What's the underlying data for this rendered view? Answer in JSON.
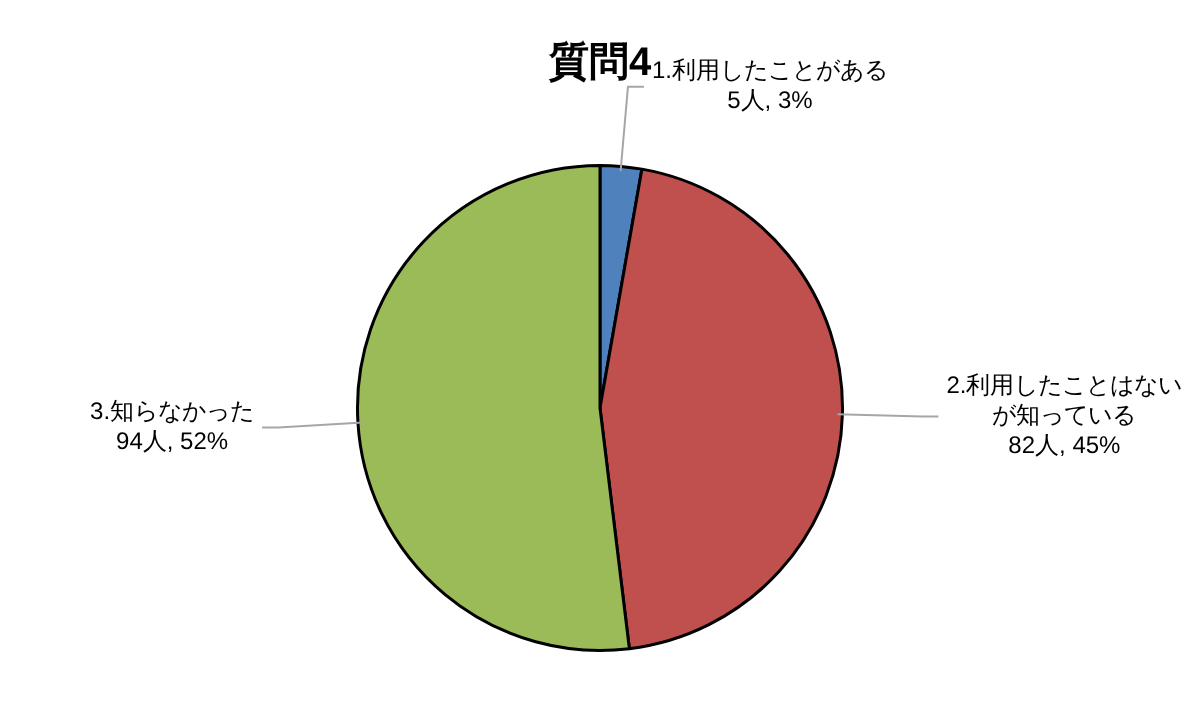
{
  "chart_data": {
    "type": "pie",
    "title": "質問4",
    "categories": [
      "1.利用したことがある",
      "2.利用したことはないが知っている",
      "3.知らなかった"
    ],
    "values": [
      5,
      82,
      94
    ],
    "value_labels": [
      "5人, 3%",
      "82人, 45%",
      "94人, 52%"
    ],
    "colors": [
      "#4f81bd",
      "#c0504d",
      "#9bbb59"
    ],
    "legend": false
  }
}
